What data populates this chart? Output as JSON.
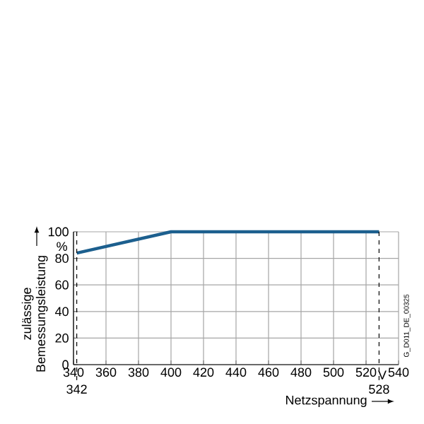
{
  "chart_data": {
    "type": "line",
    "xlabel": "Netzspannung",
    "ylabel": "zulässige Bemessungsleistung",
    "x": [
      342,
      400,
      528
    ],
    "series": [
      {
        "color": "#1c5f8e",
        "values": [
          84,
          100,
          100
        ]
      }
    ],
    "xlim": [
      340,
      540
    ],
    "ylim": [
      0,
      100
    ],
    "xticks": [
      340,
      360,
      380,
      400,
      420,
      440,
      460,
      480,
      500,
      520,
      540
    ],
    "yticks": [
      0,
      20,
      40,
      60,
      80,
      100
    ],
    "grid": true,
    "marker": "none",
    "line_style": "solid",
    "ref_lines": [
      {
        "axis": "x",
        "value": 342,
        "label": "342",
        "line_style": "dashed"
      },
      {
        "axis": "x",
        "value": 528,
        "label": "528",
        "line_style": "dashed"
      }
    ],
    "annotations": [
      "%",
      "V",
      "G_D011_DE_00325"
    ]
  }
}
